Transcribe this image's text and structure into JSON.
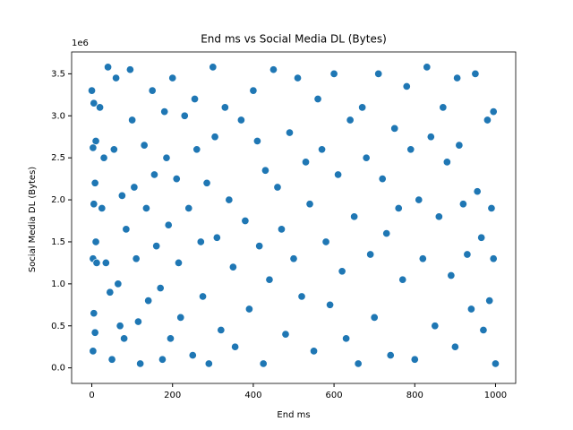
{
  "chart_data": {
    "type": "scatter",
    "title": "End ms vs Social Media DL (Bytes)",
    "x_label": "End ms",
    "y_label": "Social Media DL (Bytes)",
    "y_offset_label": "1e6",
    "color": "#1f77b4",
    "grid": false,
    "xlim": [
      -50,
      1050
    ],
    "xticks": [
      0,
      200,
      400,
      600,
      800,
      1000
    ],
    "ylim": [
      -185000,
      3760000
    ],
    "yticks": [
      {
        "value": 0,
        "label": "0.0"
      },
      {
        "value": 500000,
        "label": "0.5"
      },
      {
        "value": 1000000,
        "label": "1.0"
      },
      {
        "value": 1500000,
        "label": "1.5"
      },
      {
        "value": 2000000,
        "label": "2.0"
      },
      {
        "value": 2500000,
        "label": "2.5"
      },
      {
        "value": 3000000,
        "label": "3.0"
      },
      {
        "value": 3500000,
        "label": "3.5"
      }
    ],
    "x": [
      0,
      5,
      10,
      3,
      8,
      5,
      10,
      3,
      12,
      5,
      8,
      3,
      20,
      30,
      25,
      35,
      40,
      45,
      50,
      55,
      60,
      65,
      70,
      75,
      80,
      85,
      95,
      100,
      105,
      110,
      115,
      120,
      130,
      135,
      140,
      150,
      155,
      160,
      170,
      175,
      180,
      185,
      190,
      195,
      200,
      210,
      215,
      220,
      230,
      240,
      250,
      255,
      260,
      270,
      275,
      285,
      290,
      300,
      305,
      310,
      320,
      330,
      340,
      350,
      355,
      370,
      380,
      390,
      400,
      410,
      415,
      425,
      430,
      440,
      450,
      460,
      470,
      480,
      490,
      500,
      510,
      520,
      530,
      540,
      550,
      560,
      570,
      580,
      590,
      600,
      610,
      620,
      630,
      640,
      650,
      660,
      670,
      680,
      690,
      700,
      710,
      720,
      730,
      740,
      750,
      760,
      770,
      780,
      790,
      800,
      810,
      820,
      830,
      840,
      850,
      860,
      870,
      880,
      890,
      900,
      905,
      910,
      920,
      930,
      940,
      950,
      955,
      965,
      970,
      980,
      990,
      995,
      1000,
      995,
      985
    ],
    "values": [
      3300000,
      3150000,
      2700000,
      2620000,
      2200000,
      1950000,
      1500000,
      1300000,
      1250000,
      650000,
      420000,
      200000,
      3100000,
      2500000,
      1900000,
      1250000,
      3580000,
      900000,
      100000,
      2600000,
      3450000,
      1000000,
      500000,
      2050000,
      350000,
      1650000,
      3550000,
      2950000,
      2150000,
      1300000,
      550000,
      50000,
      2650000,
      1900000,
      800000,
      3300000,
      2300000,
      1450000,
      950000,
      100000,
      3050000,
      2500000,
      1700000,
      350000,
      3450000,
      2250000,
      1250000,
      600000,
      3000000,
      1900000,
      150000,
      3200000,
      2600000,
      1500000,
      850000,
      2200000,
      50000,
      3580000,
      2750000,
      1550000,
      450000,
      3100000,
      2000000,
      1200000,
      250000,
      2950000,
      1750000,
      700000,
      3300000,
      2700000,
      1450000,
      50000,
      2350000,
      1050000,
      3550000,
      2150000,
      1650000,
      400000,
      2800000,
      1300000,
      3450000,
      850000,
      2450000,
      1950000,
      200000,
      3200000,
      2600000,
      1500000,
      750000,
      3500000,
      2300000,
      1150000,
      350000,
      2950000,
      1800000,
      50000,
      3100000,
      2500000,
      1350000,
      600000,
      3500000,
      2250000,
      1600000,
      150000,
      2850000,
      1900000,
      1050000,
      3350000,
      2600000,
      100000,
      2000000,
      1300000,
      3580000,
      2750000,
      500000,
      1800000,
      3100000,
      2450000,
      1100000,
      250000,
      3450000,
      2650000,
      1950000,
      1350000,
      700000,
      3500000,
      2100000,
      1550000,
      450000,
      2950000,
      1900000,
      1300000,
      50000,
      3050000,
      800000
    ]
  }
}
